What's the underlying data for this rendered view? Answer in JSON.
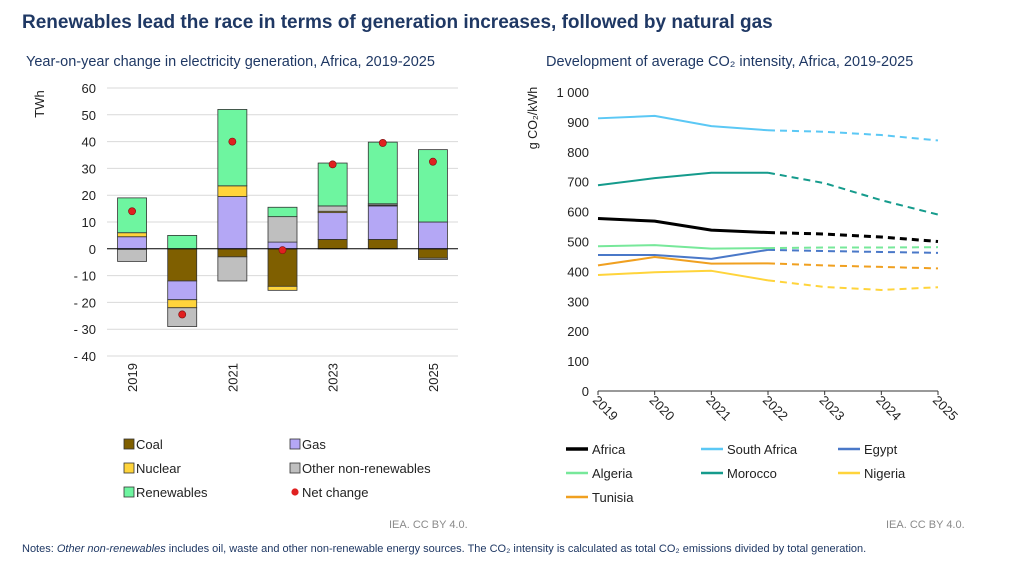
{
  "title": "Renewables lead the race in terms of generation increases, followed by natural gas",
  "notes": {
    "prefix": "Notes: ",
    "italic": "Other non-renewables",
    "suffix": " includes oil, waste and other non-renewable energy sources. The CO₂ intensity is calculated as total CO₂ emissions divided by total generation."
  },
  "chart_data": [
    {
      "type": "bar",
      "stacked": true,
      "title": "Year-on-year change in electricity generation, Africa, 2019-2025",
      "ylabel": "TWh",
      "ylim": [
        -40,
        60
      ],
      "yticks": [
        60,
        50,
        40,
        30,
        20,
        10,
        0,
        -10,
        -20,
        -30,
        -40
      ],
      "ytick_labels": [
        "60",
        "50",
        "40",
        "30",
        "20",
        "10",
        "0",
        "- 10",
        "- 20",
        "- 30",
        "- 40"
      ],
      "categories": [
        "2019",
        "2020",
        "2021",
        "2022",
        "2023",
        "2024",
        "2025"
      ],
      "xtick_labels": [
        "2019",
        "",
        "2021",
        "",
        "2023",
        "",
        "2025"
      ],
      "series": [
        {
          "name": "Coal",
          "color": "#7f5f00",
          "values": [
            -0.2,
            -12,
            -3,
            -14,
            3.5,
            3.5,
            -3.5
          ]
        },
        {
          "name": "Gas",
          "color": "#b4a7f5",
          "values": [
            4.5,
            -7,
            19.5,
            2.5,
            10,
            12.5,
            10
          ]
        },
        {
          "name": "Nuclear",
          "color": "#ffd43b",
          "values": [
            1.5,
            -3,
            4,
            -1.5,
            0.5,
            0.3,
            0
          ]
        },
        {
          "name": "Other non-renewables",
          "color": "#bfbfbf",
          "values": [
            -4.5,
            -7,
            -9,
            9.5,
            2,
            0.5,
            -0.5
          ]
        },
        {
          "name": "Renewables",
          "color": "#6ef5a0",
          "values": [
            13,
            5,
            28.5,
            3.5,
            16,
            23,
            27
          ]
        }
      ],
      "net_change": {
        "name": "Net change",
        "color": "#e02020",
        "values": [
          14,
          -24.5,
          40,
          -0.5,
          31.5,
          39.5,
          32.5
        ]
      },
      "legend_position": "bottom",
      "credit": "IEA. CC BY 4.0."
    },
    {
      "type": "line",
      "title": "Development of average CO₂ intensity, Africa, 2019-2025",
      "ylabel": "g CO₂/kWh",
      "ylim": [
        0,
        1000
      ],
      "yticks": [
        0,
        100,
        200,
        300,
        400,
        500,
        600,
        700,
        800,
        900,
        1000
      ],
      "ytick_labels": [
        "0",
        "100",
        "200",
        "300",
        "400",
        "500",
        "600",
        "700",
        "800",
        "900",
        "1 000"
      ],
      "x": [
        "2019",
        "2020",
        "2021",
        "2022",
        "2023",
        "2024",
        "2025"
      ],
      "projection_start": "2022",
      "series": [
        {
          "name": "Africa",
          "color": "#000000",
          "width": 3,
          "values": [
            577,
            568,
            538,
            530,
            525,
            515,
            500
          ]
        },
        {
          "name": "South Africa",
          "color": "#5bc8f5",
          "width": 2,
          "values": [
            912,
            920,
            886,
            872,
            867,
            856,
            838
          ]
        },
        {
          "name": "Egypt",
          "color": "#4a78c8",
          "width": 2,
          "values": [
            455,
            455,
            442,
            472,
            468,
            465,
            462
          ]
        },
        {
          "name": "Algeria",
          "color": "#77e89a",
          "width": 2,
          "values": [
            484,
            488,
            476,
            478,
            480,
            480,
            481
          ]
        },
        {
          "name": "Morocco",
          "color": "#159b8c",
          "width": 2,
          "values": [
            688,
            712,
            730,
            730,
            695,
            638,
            590
          ]
        },
        {
          "name": "Nigeria",
          "color": "#ffd43b",
          "width": 2,
          "values": [
            388,
            397,
            402,
            370,
            348,
            338,
            347
          ]
        },
        {
          "name": "Tunisia",
          "color": "#f0a020",
          "width": 2,
          "values": [
            420,
            448,
            426,
            427,
            420,
            415,
            410
          ]
        }
      ],
      "legend_position": "bottom",
      "credit": "IEA. CC BY 4.0."
    }
  ]
}
